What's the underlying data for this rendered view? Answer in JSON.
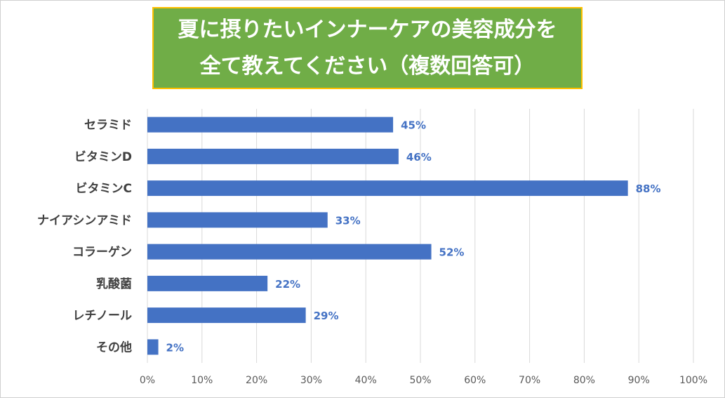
{
  "chart_data": {
    "type": "bar",
    "orientation": "horizontal",
    "title": [
      "夏に摂りたいインナーケアの美容成分を",
      "全て教えてください（複数回答可）"
    ],
    "categories": [
      "セラミド",
      "ビタミンD",
      "ビタミンC",
      "ナイアシンアミド",
      "コラーゲン",
      "乳酸菌",
      "レチノール",
      "その他"
    ],
    "values": [
      45,
      46,
      88,
      33,
      52,
      22,
      29,
      2
    ],
    "data_labels": [
      "45%",
      "46%",
      "88%",
      "33%",
      "52%",
      "22%",
      "29%",
      "2%"
    ],
    "xlim": [
      0,
      100
    ],
    "x_ticks": [
      "0%",
      "10%",
      "20%",
      "30%",
      "40%",
      "50%",
      "60%",
      "70%",
      "80%",
      "90%",
      "100%"
    ],
    "grid": true,
    "bar_color": "#4472C4",
    "title_bg": "#70AD47",
    "title_border": "#FFC000"
  }
}
